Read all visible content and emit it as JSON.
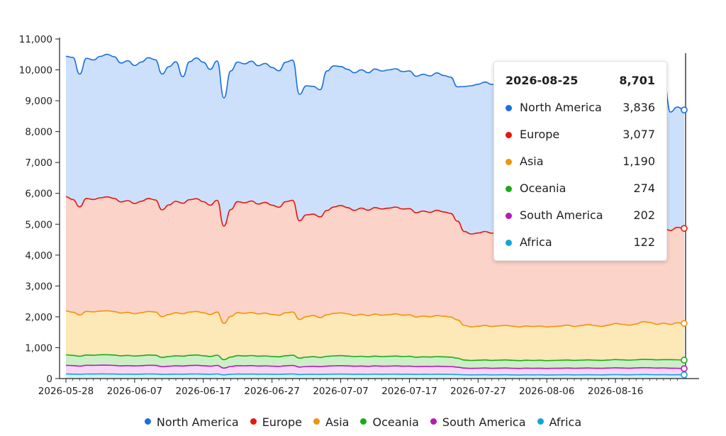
{
  "chart_data": {
    "type": "area",
    "stacked": true,
    "title": "",
    "xlabel": "",
    "ylabel": "",
    "ylim": [
      0,
      11500
    ],
    "y_ticks": [
      0,
      1000,
      2000,
      3000,
      4000,
      5000,
      6000,
      7000,
      8000,
      9000,
      10000,
      11000
    ],
    "y_tick_labels": [
      "0",
      "1,000",
      "2,000",
      "3,000",
      "4,000",
      "5,000",
      "6,000",
      "7,000",
      "8,000",
      "9,000",
      "10,000",
      "11,000"
    ],
    "x_tick_labels": [
      "2026-05-28",
      "2026-06-07",
      "2026-06-17",
      "2026-06-27",
      "2026-07-07",
      "2026-07-17",
      "2026-07-27",
      "2026-08-06",
      "2026-08-16"
    ],
    "x_range": [
      "2026-05-28",
      "2026-08-25"
    ],
    "grid": false,
    "legend_position": "bottom",
    "series": [
      {
        "name": "Africa",
        "color": "#12a4d9",
        "fill": "#d6eff8",
        "values": [
          150,
          145,
          138,
          150,
          148,
          152,
          150,
          148,
          142,
          145,
          140,
          145,
          150,
          148,
          135,
          140,
          145,
          142,
          148,
          150,
          145,
          140,
          150,
          120,
          140,
          148,
          145,
          148,
          142,
          145,
          140,
          138,
          145,
          150,
          132,
          138,
          140,
          135,
          142,
          145,
          148,
          145,
          140,
          142,
          138,
          145,
          140,
          142,
          145,
          140,
          142,
          136,
          140,
          138,
          142,
          140,
          138,
          130,
          122,
          120,
          122,
          125,
          120,
          122,
          125,
          120,
          118,
          122,
          120,
          122,
          118,
          120,
          122,
          124,
          120,
          122,
          125,
          122,
          120,
          124,
          128,
          125,
          122,
          126,
          130,
          128,
          124,
          126,
          122,
          124,
          122
        ]
      },
      {
        "name": "South America",
        "color": "#b51ab5",
        "fill": "#f7d6f5",
        "values": [
          280,
          275,
          265,
          280,
          278,
          282,
          285,
          280,
          270,
          275,
          268,
          272,
          280,
          278,
          250,
          260,
          270,
          265,
          275,
          280,
          270,
          262,
          275,
          220,
          250,
          270,
          268,
          272,
          265,
          268,
          262,
          258,
          270,
          275,
          240,
          252,
          258,
          250,
          262,
          268,
          270,
          266,
          260,
          264,
          258,
          265,
          260,
          262,
          266,
          260,
          262,
          252,
          256,
          254,
          258,
          256,
          252,
          240,
          218,
          210,
          214,
          218,
          212,
          215,
          218,
          214,
          210,
          215,
          212,
          214,
          210,
          212,
          214,
          216,
          212,
          215,
          218,
          214,
          212,
          216,
          220,
          218,
          214,
          218,
          222,
          220,
          216,
          218,
          214,
          208,
          202
        ]
      },
      {
        "name": "Oceania",
        "color": "#1aab1a",
        "fill": "#ccefc8",
        "values": [
          340,
          330,
          320,
          335,
          330,
          338,
          340,
          335,
          325,
          330,
          322,
          328,
          335,
          330,
          300,
          315,
          325,
          318,
          330,
          335,
          325,
          315,
          330,
          270,
          305,
          325,
          320,
          326,
          318,
          322,
          315,
          310,
          325,
          330,
          290,
          305,
          312,
          300,
          315,
          322,
          325,
          320,
          312,
          318,
          310,
          318,
          312,
          316,
          320,
          314,
          316,
          304,
          310,
          306,
          312,
          308,
          304,
          290,
          262,
          255,
          258,
          262,
          256,
          260,
          262,
          258,
          254,
          258,
          256,
          258,
          254,
          256,
          258,
          262,
          256,
          260,
          264,
          260,
          256,
          262,
          268,
          264,
          260,
          265,
          272,
          270,
          266,
          270,
          278,
          276,
          274
        ]
      },
      {
        "name": "Asia",
        "color": "#f0940a",
        "fill": "#fde8b8",
        "values": [
          1420,
          1400,
          1340,
          1410,
          1405,
          1415,
          1420,
          1410,
          1385,
          1395,
          1370,
          1390,
          1410,
          1400,
          1320,
          1360,
          1390,
          1375,
          1400,
          1410,
          1390,
          1360,
          1400,
          1180,
          1320,
          1390,
          1380,
          1395,
          1370,
          1385,
          1360,
          1345,
          1390,
          1400,
          1250,
          1310,
          1335,
          1290,
          1345,
          1375,
          1385,
          1365,
          1335,
          1360,
          1330,
          1360,
          1340,
          1350,
          1365,
          1340,
          1345,
          1300,
          1320,
          1305,
          1330,
          1315,
          1300,
          1240,
          1120,
          1090,
          1100,
          1120,
          1100,
          1110,
          1120,
          1105,
          1090,
          1110,
          1100,
          1110,
          1090,
          1100,
          1110,
          1130,
          1100,
          1120,
          1140,
          1120,
          1100,
          1130,
          1170,
          1150,
          1130,
          1160,
          1220,
          1200,
          1150,
          1180,
          1140,
          1200,
          1190
        ]
      },
      {
        "name": "Europe",
        "color": "#e8160c",
        "fill": "#fcd3c8",
        "values": [
          3700,
          3650,
          3500,
          3660,
          3640,
          3670,
          3690,
          3665,
          3600,
          3620,
          3570,
          3610,
          3660,
          3630,
          3460,
          3550,
          3610,
          3580,
          3640,
          3650,
          3600,
          3540,
          3620,
          3150,
          3460,
          3600,
          3580,
          3610,
          3560,
          3590,
          3540,
          3500,
          3600,
          3620,
          3200,
          3300,
          3280,
          3260,
          3380,
          3450,
          3480,
          3440,
          3400,
          3440,
          3420,
          3450,
          3440,
          3450,
          3460,
          3440,
          3440,
          3380,
          3400,
          3380,
          3410,
          3380,
          3360,
          3200,
          3040,
          3010,
          3020,
          3040,
          3020,
          3030,
          3040,
          3020,
          3010,
          3030,
          3020,
          3030,
          3010,
          3020,
          3030,
          3050,
          3020,
          3040,
          3060,
          3040,
          3020,
          3050,
          3080,
          3060,
          3040,
          3070,
          3110,
          3090,
          3050,
          3080,
          3040,
          3090,
          3077
        ]
      },
      {
        "name": "North America",
        "color": "#1a6fe0",
        "fill": "#cde0fb",
        "values": [
          4550,
          4600,
          4300,
          4540,
          4520,
          4580,
          4620,
          4590,
          4500,
          4530,
          4470,
          4510,
          4560,
          4540,
          4400,
          4480,
          4520,
          4100,
          4470,
          4560,
          4520,
          4400,
          4510,
          4150,
          4490,
          4520,
          4500,
          4530,
          4480,
          4500,
          4460,
          4420,
          4520,
          4540,
          4100,
          4180,
          4140,
          4120,
          4520,
          4570,
          4500,
          4480,
          4460,
          4480,
          4450,
          4490,
          4470,
          4480,
          4480,
          4450,
          4460,
          4420,
          4430,
          4420,
          4450,
          4420,
          4410,
          4350,
          4700,
          4800,
          4820,
          4840,
          4820,
          4830,
          4840,
          4820,
          4810,
          4830,
          4820,
          4830,
          4810,
          4820,
          4830,
          4850,
          4820,
          4840,
          4860,
          4840,
          4820,
          4850,
          4880,
          4860,
          4840,
          4870,
          4910,
          4890,
          4850,
          4880,
          3840,
          3900,
          3836
        ]
      }
    ]
  },
  "tooltip": {
    "date": "2026-08-25",
    "total": "8,701",
    "rows": [
      {
        "name": "North America",
        "value": "3,836",
        "color": "#1a6fe0"
      },
      {
        "name": "Europe",
        "value": "3,077",
        "color": "#e8160c"
      },
      {
        "name": "Asia",
        "value": "1,190",
        "color": "#f0940a"
      },
      {
        "name": "Oceania",
        "value": "274",
        "color": "#1aab1a"
      },
      {
        "name": "South America",
        "value": "202",
        "color": "#b51ab5"
      },
      {
        "name": "Africa",
        "value": "122",
        "color": "#12a4d9"
      }
    ]
  },
  "legend": [
    {
      "name": "North America",
      "color": "#1a6fe0"
    },
    {
      "name": "Europe",
      "color": "#e8160c"
    },
    {
      "name": "Asia",
      "color": "#f0940a"
    },
    {
      "name": "Oceania",
      "color": "#1aab1a"
    },
    {
      "name": "South America",
      "color": "#b51ab5"
    },
    {
      "name": "Africa",
      "color": "#12a4d9"
    }
  ]
}
